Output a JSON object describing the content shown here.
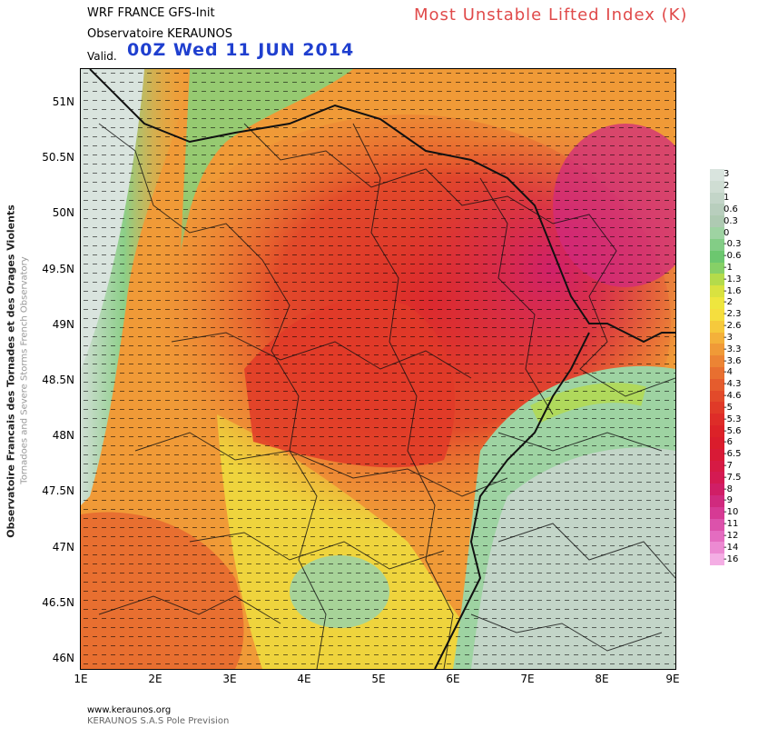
{
  "header": {
    "model": "WRF FRANCE   GFS-Init",
    "observatory": "Observatoire KERAUNOS",
    "valid_label": "Valid.",
    "valid_time": "00Z Wed 11 JUN 2014",
    "product_title": "Most Unstable Lifted Index (K)"
  },
  "side": {
    "line1": "Observatoire Francais des Tornades et des Orages Violents",
    "line2": "Tornadoes and Severe Storms French Observatory"
  },
  "axes": {
    "lat_labels": [
      "51N",
      "50.5N",
      "50N",
      "49.5N",
      "49N",
      "48.5N",
      "48N",
      "47.5N",
      "47N",
      "46.5N",
      "46N"
    ],
    "lon_labels": [
      "1E",
      "2E",
      "3E",
      "4E",
      "5E",
      "6E",
      "7E",
      "8E",
      "9E"
    ]
  },
  "scale": {
    "labels": [
      "3",
      "2",
      "1",
      "0.6",
      "0.3",
      "0",
      "-0.3",
      "-0.6",
      "-1",
      "-1.3",
      "-1.6",
      "-2",
      "-2.3",
      "-2.6",
      "-3",
      "-3.3",
      "-3.6",
      "-4",
      "-4.3",
      "-4.6",
      "-5",
      "-5.3",
      "-5.6",
      "-6",
      "-6.5",
      "-7",
      "-7.5",
      "-8",
      "-9",
      "-10",
      "-11",
      "-12",
      "-14",
      "-16"
    ],
    "colors": [
      "#d9e4de",
      "#cfddd3",
      "#c3d5c8",
      "#b8cebd",
      "#aecab2",
      "#9ed3a2",
      "#83cd86",
      "#6cc76f",
      "#86d067",
      "#b4db4b",
      "#d9e240",
      "#eee63e",
      "#f5de3e",
      "#f6c93c",
      "#f4b13a",
      "#f09a37",
      "#ec8434",
      "#e86f30",
      "#e55c2d",
      "#e24a2a",
      "#e03a28",
      "#de2c28",
      "#dc2228",
      "#da1c2c",
      "#d81a36",
      "#d61a44",
      "#d41a52",
      "#d01e66",
      "#d02a7e",
      "#d63a94",
      "#dc52ab",
      "#e46cc0",
      "#ec8ad2",
      "#f4aee4"
    ]
  },
  "footer": {
    "website": "www.keraunos.org",
    "company": "KERAUNOS S.A.S Pole Prevision"
  }
}
